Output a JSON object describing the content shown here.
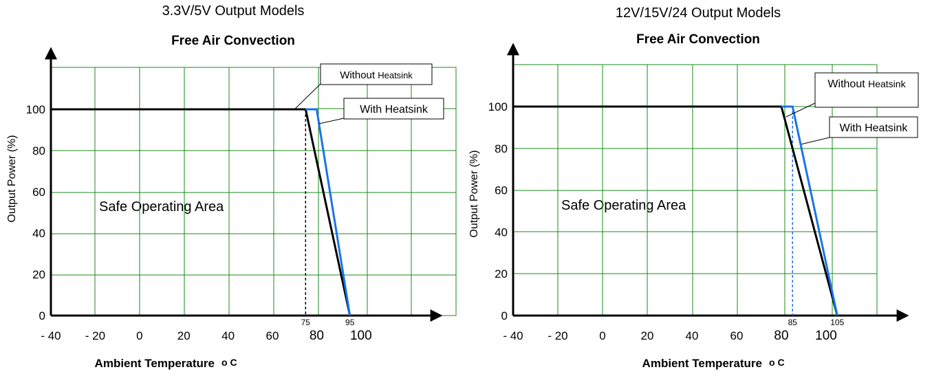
{
  "chart_data": [
    {
      "type": "line",
      "title": "3.3V/5V Output Models",
      "subtitle": "Free Air Convection",
      "xlabel": "Ambient Temperature",
      "xlabel_unit": "o C",
      "ylabel": "Output Power (%)",
      "xlim": [
        -40,
        120
      ],
      "ylim": [
        0,
        120
      ],
      "x_ticks": [
        {
          "label": "- 40",
          "value": -40
        },
        {
          "label": "- 20",
          "value": -20
        },
        {
          "label": "0",
          "value": 0
        },
        {
          "label": "20",
          "value": 20
        },
        {
          "label": "40",
          "value": 40
        },
        {
          "label": "60",
          "value": 60
        },
        {
          "label": "80",
          "value": 80
        },
        {
          "label": "100",
          "value": 100
        }
      ],
      "y_ticks": [
        0,
        20,
        40,
        60,
        80,
        100
      ],
      "grid": true,
      "series": [
        {
          "name": "Without Heatsink",
          "color": "#000000",
          "x": [
            -40,
            75,
            95
          ],
          "y": [
            100,
            100,
            0
          ]
        },
        {
          "name": "With Heatsink",
          "color": "#1a73e8",
          "x": [
            75,
            80,
            95
          ],
          "y": [
            100,
            100,
            0
          ]
        }
      ],
      "markers": [
        {
          "label": "75",
          "x": 75,
          "color": "#000000"
        },
        {
          "label": "95",
          "x": 95,
          "color": "#1a73e8"
        }
      ],
      "region_label": "Safe Operating Area",
      "callouts": [
        {
          "text": "Without Heatsink",
          "target": [
            70,
            100
          ]
        },
        {
          "text": "With Heatsink",
          "target": [
            81,
            93
          ]
        }
      ]
    },
    {
      "type": "line",
      "title": "12V/15V/24 Output Models",
      "subtitle": "Free Air Convection",
      "xlabel": "Ambient Temperature",
      "xlabel_unit": "o C",
      "ylabel": "Output Power (%)",
      "xlim": [
        -40,
        130
      ],
      "ylim": [
        0,
        120
      ],
      "x_ticks": [
        {
          "label": "- 40",
          "value": -40
        },
        {
          "label": "- 20",
          "value": -20
        },
        {
          "label": "0",
          "value": 0
        },
        {
          "label": "20",
          "value": 20
        },
        {
          "label": "40",
          "value": 40
        },
        {
          "label": "60",
          "value": 60
        },
        {
          "label": "80",
          "value": 80
        },
        {
          "label": "100",
          "value": 100
        }
      ],
      "y_ticks": [
        0,
        20,
        40,
        60,
        80,
        100
      ],
      "grid": true,
      "series": [
        {
          "name": "Without Heatsink",
          "color": "#000000",
          "x": [
            -40,
            80,
            105
          ],
          "y": [
            100,
            100,
            0
          ]
        },
        {
          "name": "With Heatsink",
          "color": "#1a73e8",
          "x": [
            80,
            85,
            105
          ],
          "y": [
            100,
            100,
            0
          ]
        }
      ],
      "markers": [
        {
          "label": "85",
          "x": 85,
          "color": "#1a73e8"
        },
        {
          "label": "105",
          "x": 105,
          "color": "#1a73e8"
        }
      ],
      "region_label": "Safe Operating Area",
      "callouts": [
        {
          "text": "Without Heatsink",
          "target": [
            82,
            95
          ]
        },
        {
          "text": "With Heatsink",
          "target": [
            89,
            82
          ]
        }
      ]
    }
  ]
}
